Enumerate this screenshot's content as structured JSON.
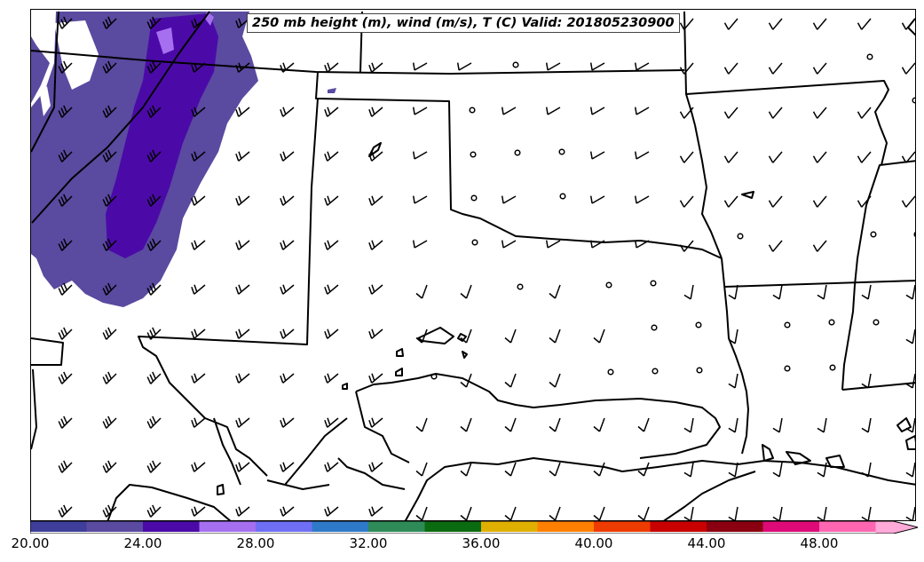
{
  "map": {
    "title": "250 mb height (m), wind (m/s), T (C) Valid: 201805230900"
  },
  "colorbar": {
    "tick_labels": [
      "20.00",
      "24.00",
      "28.00",
      "32.00",
      "36.00",
      "40.00",
      "44.00",
      "48.00"
    ],
    "colors": [
      "#3f3f9b",
      "#5a4aa0",
      "#4b0aa8",
      "#a56ff0",
      "#6f6ff5",
      "#2f7ac8",
      "#2e8b57",
      "#0b6b10",
      "#e0b000",
      "#ff8000",
      "#ee3b00",
      "#c80000",
      "#8b0010",
      "#dd0a78",
      "#ff66b2",
      "#ffaad8"
    ],
    "extend": "max"
  },
  "fill_colors": {
    "temp_dark": "#4b0aa8",
    "temp_mid": "#5a4aa0",
    "temp_light": "#a56ff0"
  },
  "wind_barbs": "ragged"
}
